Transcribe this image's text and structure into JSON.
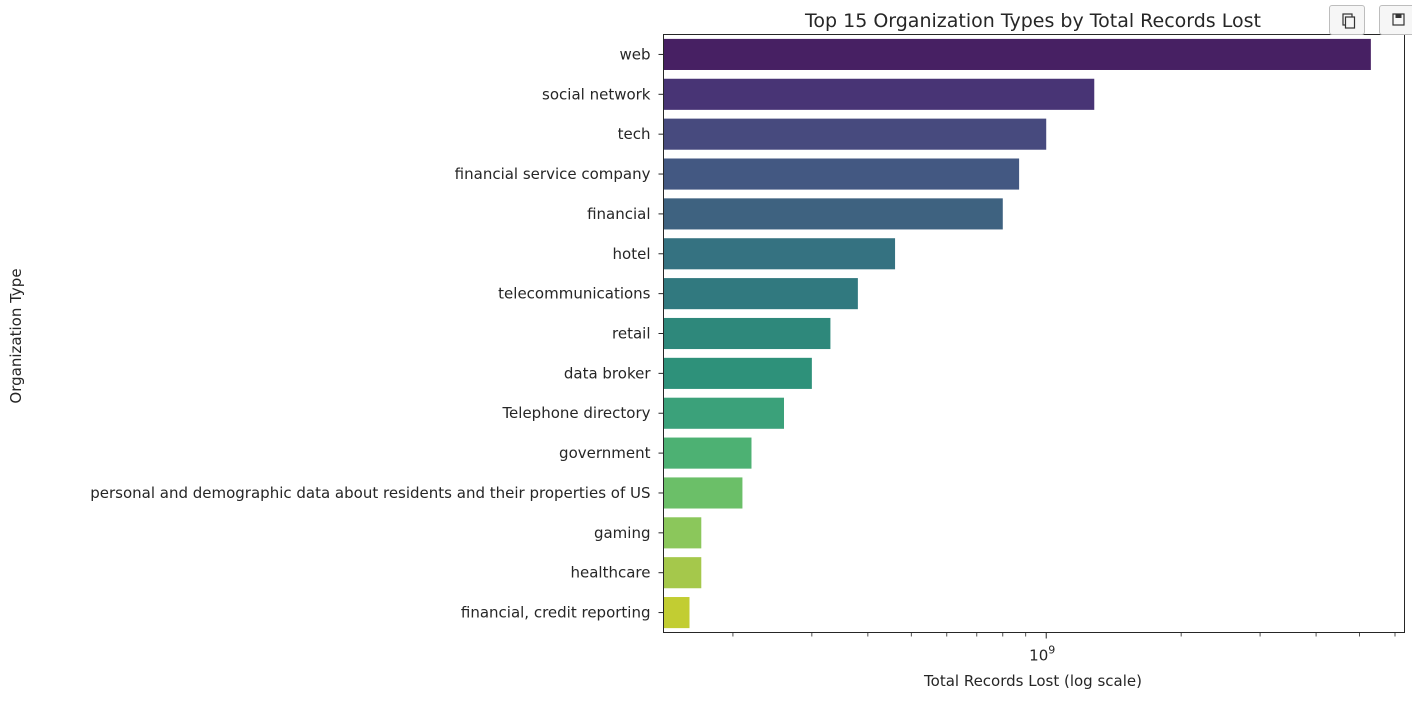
{
  "toolbar": {
    "copy_icon": "copy-icon",
    "save_icon": "save-icon"
  },
  "chart_data": {
    "type": "bar",
    "orientation": "horizontal",
    "title": "Top 15 Organization Types by Total Records Lost",
    "xlabel": "Total Records Lost (log scale)",
    "ylabel": "Organization Type",
    "xscale": "log",
    "xlim": [
      140000000,
      6300000000
    ],
    "x_major_tick_labels": [
      {
        "value": 1000000000,
        "base": "10",
        "exponent": "9"
      }
    ],
    "grid": false,
    "legend": "none",
    "categories": [
      "web",
      "social network",
      "tech",
      "financial service company",
      "financial",
      "hotel",
      "telecommunications",
      "retail",
      "data broker",
      "Telephone directory",
      "government",
      "personal and demographic data about residents and their properties of US",
      "gaming",
      "healthcare",
      "financial, credit reporting"
    ],
    "values": [
      5300000000,
      1280000000,
      1000000000,
      870000000,
      800000000,
      460000000,
      380000000,
      330000000,
      300000000,
      260000000,
      220000000,
      210000000,
      170000000,
      170000000,
      160000000
    ],
    "colors": [
      "#472063",
      "#483475",
      "#474a7e",
      "#435882",
      "#3e6280",
      "#357281",
      "#31797f",
      "#2e887b",
      "#2e917a",
      "#3ba17a",
      "#4db173",
      "#6bbf68",
      "#8bc75b",
      "#a5c84b",
      "#c2cd32"
    ]
  }
}
